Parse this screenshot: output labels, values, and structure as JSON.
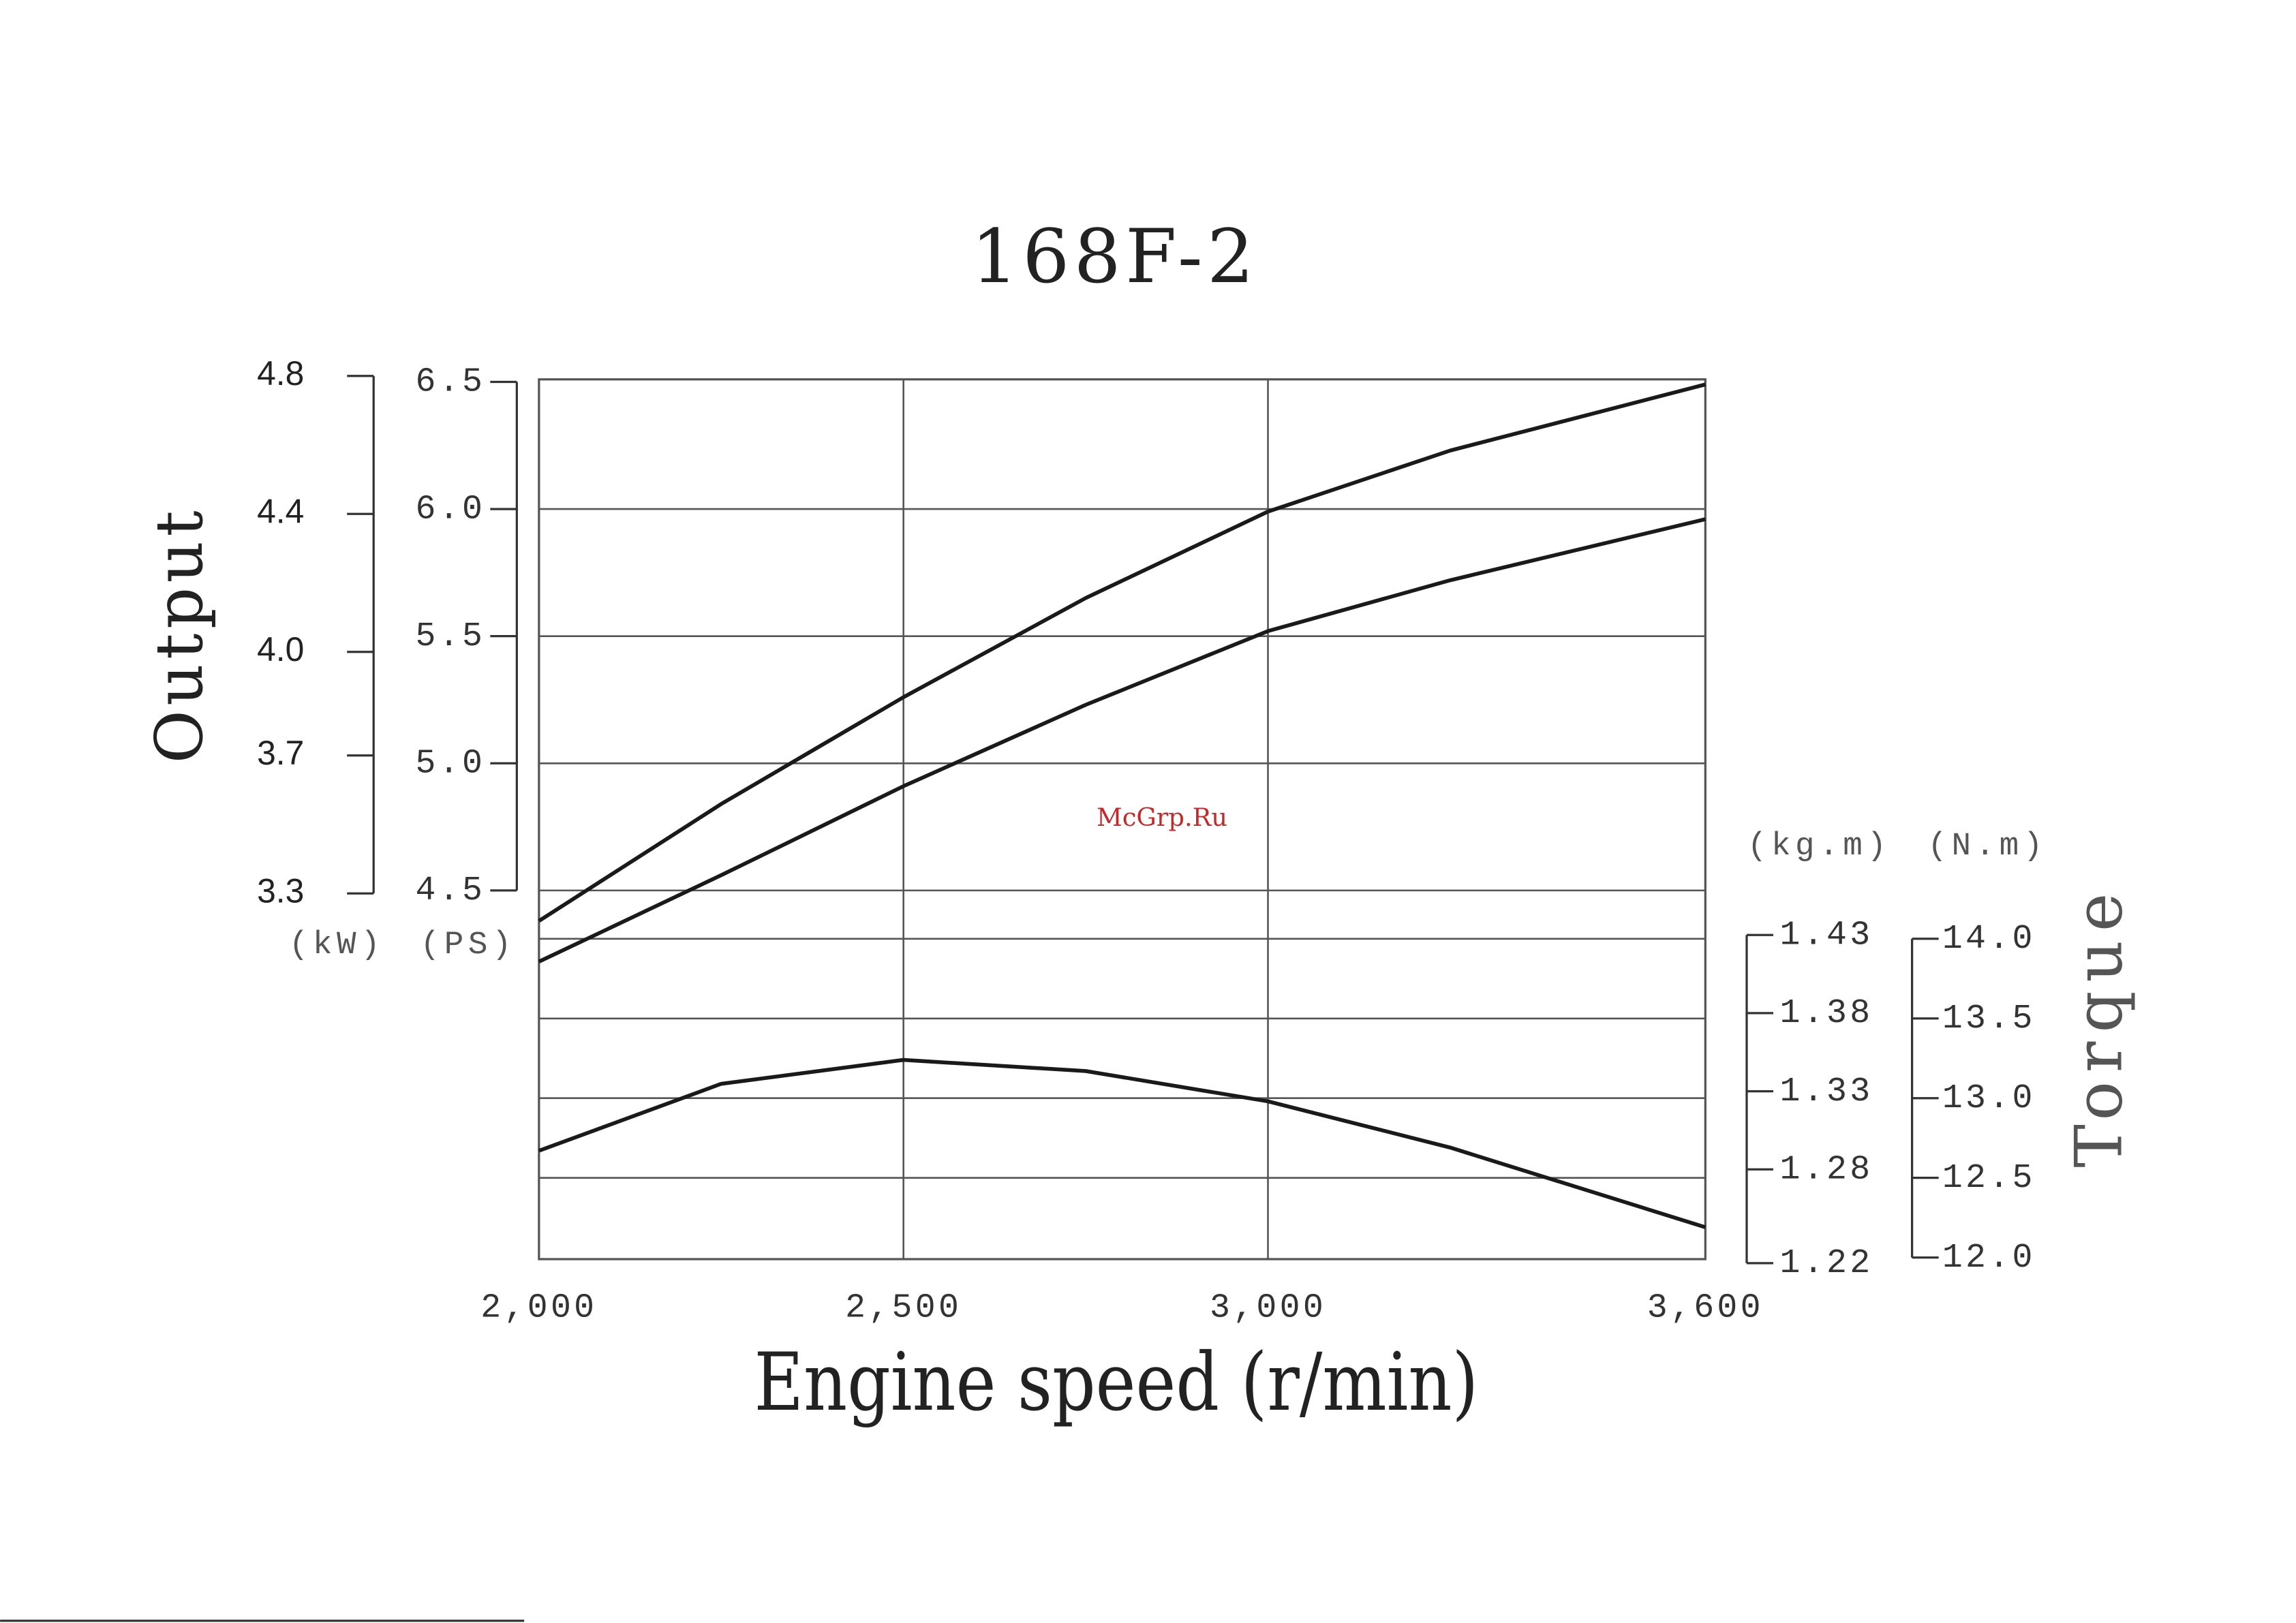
{
  "chart_data": {
    "type": "line",
    "title": "168F-2",
    "watermark": "McGrp.Ru",
    "x_label": "Engine speed (r/min)",
    "y_label": "Output",
    "y2_label": "Torque",
    "y_unit": "(PS)",
    "y3_unit": "(kW)",
    "y2_unit": "(N.m)",
    "y4_unit": "(kg.m)",
    "x": [
      2000,
      2250,
      2500,
      2750,
      3000,
      3250,
      3600
    ],
    "xlim": [
      2000,
      3600
    ],
    "xticks": [
      {
        "value": 2000,
        "label": "2,000"
      },
      {
        "value": 2500,
        "label": "2,500"
      },
      {
        "value": 3000,
        "label": "3,000"
      },
      {
        "value": 3600,
        "label": "3,600"
      }
    ],
    "ylim": [
      3.05,
      6.51
    ],
    "yticks": [
      4.5,
      {
        "value": 5,
        "label": "5.0"
      },
      5.5,
      {
        "value": 6,
        "label": "6.0"
      },
      6.5
    ],
    "y3lim": [
      2.24,
      4.79
    ],
    "y3ticks": [
      3.3,
      3.7,
      {
        "value": 4,
        "label": "4.0"
      },
      4.4,
      4.8
    ],
    "y2lim": [
      11.99,
      17.51
    ],
    "y2ticks": [
      {
        "value": 12,
        "label": "12.0"
      },
      12.5,
      {
        "value": 13,
        "label": "13.0"
      },
      13.5,
      {
        "value": 14,
        "label": "14.0"
      }
    ],
    "y4lim": [
      1.2226,
      1.7855
    ],
    "y4ticks": [
      1.22,
      1.28,
      1.33,
      1.38,
      1.43
    ],
    "grid": true,
    "series": [
      {
        "color": "#1a1a1a",
        "values": [
          4.38,
          4.84,
          5.26,
          5.65,
          5.99,
          6.23,
          6.49
        ]
      },
      {
        "color": "#1a1a1a",
        "values": [
          4.22,
          4.56,
          4.91,
          5.23,
          5.52,
          5.72,
          5.96
        ]
      },
      {
        "color": "#1a1a1a",
        "axis": "y2",
        "values": [
          12.67,
          13.09,
          13.24,
          13.17,
          12.98,
          12.69,
          12.19
        ]
      }
    ]
  }
}
